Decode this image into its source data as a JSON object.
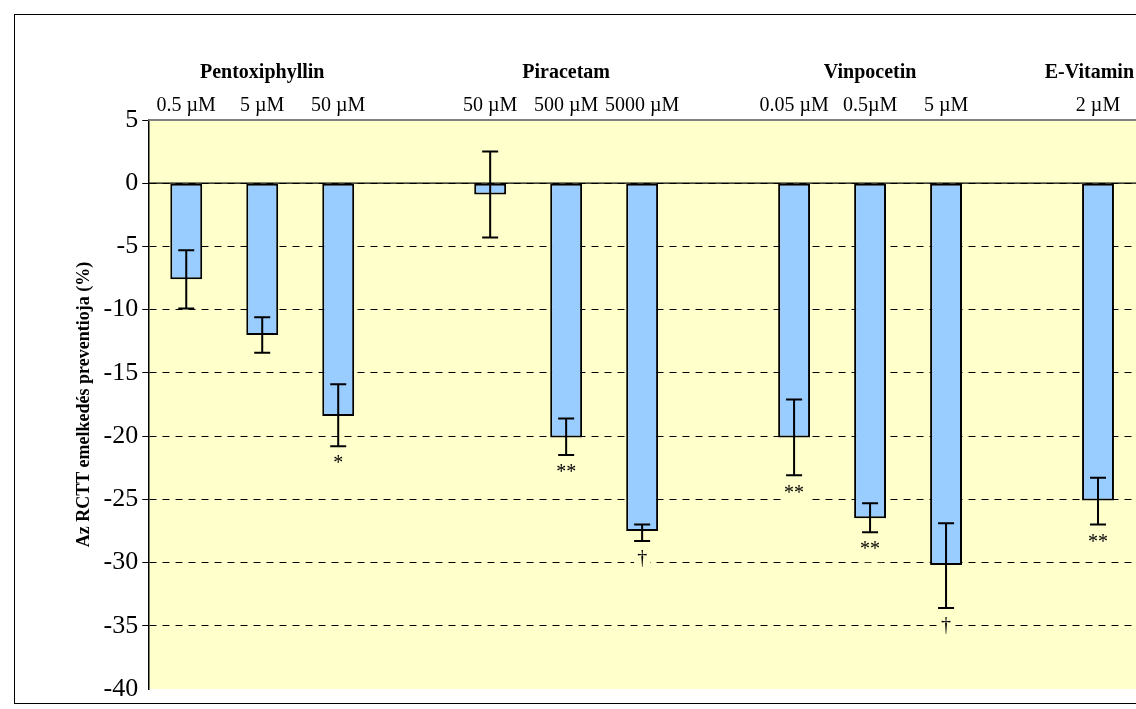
{
  "chart_data": {
    "type": "bar",
    "ylabel": "Az RCTT emelkedés preventioja (%)",
    "categories": [
      "0.5 µM",
      "5 µM",
      "50 µM",
      null,
      "50 µM",
      "500 µM",
      "5000 µM",
      null,
      "0.05 µM",
      "0.5µM",
      "5 µM",
      null,
      "2 µM"
    ],
    "values": [
      -7.6,
      -12.0,
      -18.4,
      null,
      -0.9,
      -20.1,
      -27.5,
      null,
      -20.1,
      -26.5,
      -30.2,
      null,
      -25.1
    ],
    "errors": [
      [
        -9.9,
        -5.3
      ],
      [
        -13.4,
        -10.6
      ],
      [
        -20.8,
        -15.9
      ],
      null,
      [
        -4.3,
        2.5
      ],
      [
        -21.5,
        -18.6
      ],
      [
        -28.3,
        -27.0
      ],
      null,
      [
        -23.1,
        -17.1
      ],
      [
        -27.6,
        -25.3
      ],
      [
        -33.6,
        -26.9
      ],
      null,
      [
        -27.0,
        -23.3
      ]
    ],
    "value_labels": [
      null,
      null,
      "*",
      null,
      null,
      "**",
      "†",
      null,
      "**",
      "**",
      "†",
      null,
      "**"
    ],
    "color": "#99ccff",
    "annotations": [
      "Pentoxiphyllin",
      "Piracetam",
      "Vinpocetin",
      "E-Vitamin"
    ],
    "ylim": [
      -40,
      5
    ],
    "yticks": [
      5,
      0,
      -5,
      -10,
      -15,
      -20,
      -25,
      -30,
      -35,
      -40
    ],
    "grid": "y",
    "legend": false
  }
}
